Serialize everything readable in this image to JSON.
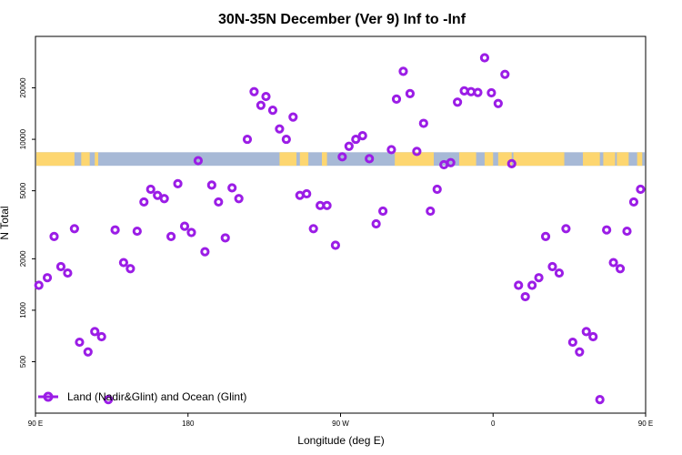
{
  "chart_data": {
    "type": "scatter",
    "title": "30N-35N December (Ver 9)   Inf to -Inf",
    "xlabel": "Longitude (deg E)",
    "ylabel": "N Total",
    "xlim": [
      90,
      450
    ],
    "ylim_log": [
      250,
      40000
    ],
    "y_scale": "log",
    "x_ticks": [
      {
        "value": 90,
        "label": "90 E"
      },
      {
        "value": 180,
        "label": "180"
      },
      {
        "value": 270,
        "label": "90 W"
      },
      {
        "value": 360,
        "label": "0"
      },
      {
        "value": 450,
        "label": "90 E"
      }
    ],
    "y_ticks": [
      {
        "value": 500,
        "label": "500"
      },
      {
        "value": 1000,
        "label": "1000"
      },
      {
        "value": 2000,
        "label": "2000"
      },
      {
        "value": 5000,
        "label": "5000"
      },
      {
        "value": 10000,
        "label": "10000"
      },
      {
        "value": 20000,
        "label": "20000"
      }
    ],
    "legend": {
      "label": "Land (Nadir&Glint) and Ocean (Glint)",
      "position": "bottom-left"
    },
    "series": [
      {
        "name": "Land (Nadir&Glint) and Ocean (Glint)",
        "color": "#9b1de6",
        "points": [
          [
            92,
            1400
          ],
          [
            97,
            1550
          ],
          [
            101,
            2700
          ],
          [
            105,
            1800
          ],
          [
            109,
            1650
          ],
          [
            113,
            3000
          ],
          [
            116,
            650
          ],
          [
            121,
            570
          ],
          [
            125,
            750
          ],
          [
            129,
            700
          ],
          [
            133,
            300
          ],
          [
            137,
            2950
          ],
          [
            142,
            1900
          ],
          [
            146,
            1750
          ],
          [
            150,
            2900
          ],
          [
            154,
            4300
          ],
          [
            158,
            5100
          ],
          [
            162,
            4700
          ],
          [
            166,
            4500
          ],
          [
            170,
            2700
          ],
          [
            174,
            5500
          ],
          [
            178,
            3100
          ],
          [
            182,
            2850
          ],
          [
            186,
            7500
          ],
          [
            190,
            2200
          ],
          [
            194,
            5400
          ],
          [
            198,
            4300
          ],
          [
            202,
            2650
          ],
          [
            206,
            5200
          ],
          [
            210,
            4500
          ],
          [
            215,
            10000
          ],
          [
            219,
            19000
          ],
          [
            223,
            15800
          ],
          [
            226,
            17800
          ],
          [
            230,
            14800
          ],
          [
            234,
            11500
          ],
          [
            238,
            10000
          ],
          [
            242,
            13500
          ],
          [
            246,
            4700
          ],
          [
            250,
            4800
          ],
          [
            254,
            3000
          ],
          [
            258,
            4100
          ],
          [
            262,
            4100
          ],
          [
            267,
            2400
          ],
          [
            271,
            7900
          ],
          [
            275,
            9100
          ],
          [
            279,
            10000
          ],
          [
            283,
            10500
          ],
          [
            287,
            7700
          ],
          [
            291,
            3200
          ],
          [
            295,
            3800
          ],
          [
            300,
            8700
          ],
          [
            303,
            17200
          ],
          [
            307,
            25000
          ],
          [
            311,
            18500
          ],
          [
            315,
            8500
          ],
          [
            319,
            12400
          ],
          [
            323,
            3800
          ],
          [
            327,
            5100
          ],
          [
            331,
            7100
          ],
          [
            335,
            7300
          ],
          [
            339,
            16500
          ],
          [
            343,
            19200
          ],
          [
            347,
            19000
          ],
          [
            351,
            18800
          ],
          [
            355,
            30000
          ],
          [
            359,
            18700
          ],
          [
            363,
            16200
          ],
          [
            367,
            24000
          ],
          [
            371,
            7200
          ],
          [
            375,
            1400
          ],
          [
            379,
            1200
          ],
          [
            383,
            1400
          ],
          [
            387,
            1550
          ],
          [
            391,
            2700
          ],
          [
            395,
            1800
          ],
          [
            399,
            1650
          ],
          [
            403,
            3000
          ],
          [
            407,
            650
          ],
          [
            411,
            570
          ],
          [
            415,
            750
          ],
          [
            419,
            700
          ],
          [
            423,
            300
          ],
          [
            427,
            2950
          ],
          [
            431,
            1900
          ],
          [
            435,
            1750
          ],
          [
            439,
            2900
          ],
          [
            443,
            4300
          ],
          [
            447,
            5100
          ],
          [
            451,
            4700
          ]
        ]
      }
    ],
    "surface_strip": {
      "y_band": [
        7000,
        8400
      ],
      "ocean_color": "#a7b9d6",
      "land_color": "#fdd670",
      "land_ranges": [
        [
          90,
          113
        ],
        [
          117,
          122
        ],
        [
          125,
          127
        ],
        [
          234,
          244
        ],
        [
          246,
          251
        ],
        [
          259,
          262
        ],
        [
          302,
          325
        ],
        [
          340,
          350
        ],
        [
          355,
          360
        ],
        [
          363,
          371
        ],
        [
          372,
          402
        ],
        [
          413,
          423
        ],
        [
          425,
          432
        ],
        [
          433,
          440
        ],
        [
          445,
          448
        ]
      ]
    }
  }
}
